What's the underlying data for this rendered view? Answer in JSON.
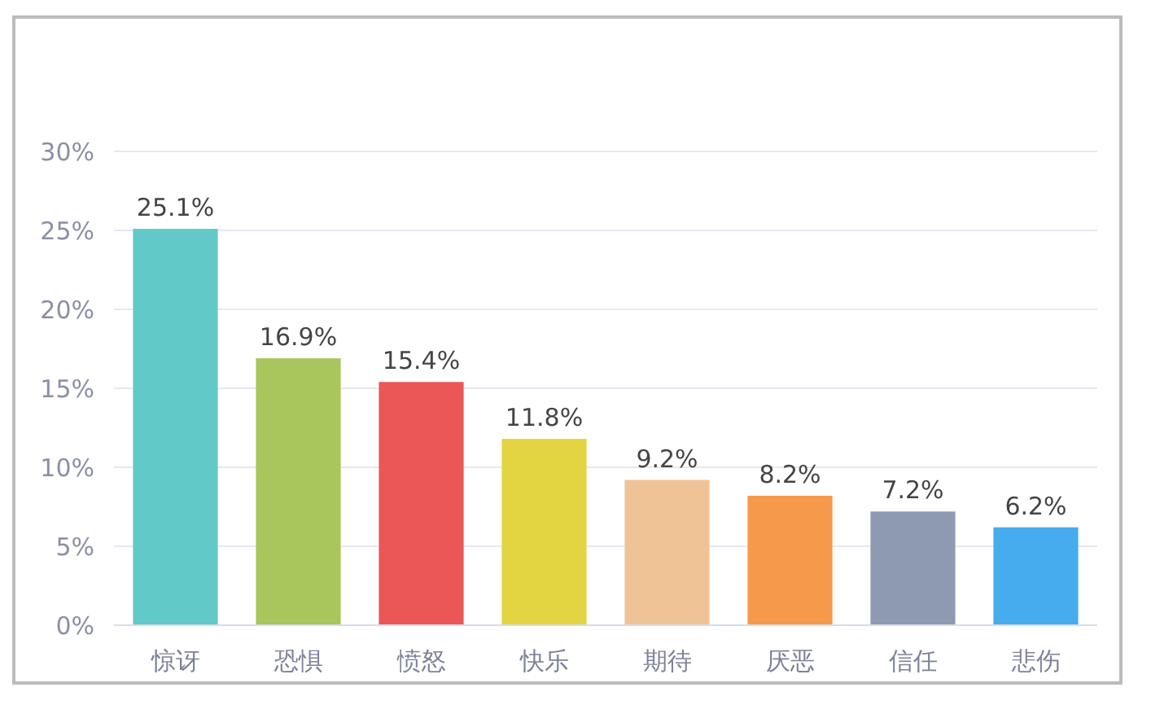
{
  "chart_data": {
    "type": "bar",
    "categories": [
      "惊讶",
      "恐惧",
      "愤怒",
      "快乐",
      "期待",
      "厌恶",
      "信任",
      "悲伤"
    ],
    "values": [
      25.1,
      16.9,
      15.4,
      11.8,
      9.2,
      8.2,
      7.2,
      6.2
    ],
    "colors": [
      "#62c9c9",
      "#a8c65c",
      "#eb5656",
      "#e3d441",
      "#f0c397",
      "#f7994b",
      "#8e9ab2",
      "#47aced"
    ],
    "value_labels": [
      "25.1%",
      "16.9%",
      "15.4%",
      "11.8%",
      "9.2%",
      "8.2%",
      "7.2%",
      "6.2%"
    ],
    "ylim": [
      0,
      30
    ],
    "yticks": [
      {
        "value": 0,
        "label": "0%"
      },
      {
        "value": 5,
        "label": "5%"
      },
      {
        "value": 10,
        "label": "10%"
      },
      {
        "value": 15,
        "label": "15%"
      },
      {
        "value": 20,
        "label": "20%"
      },
      {
        "value": 25,
        "label": "25%"
      },
      {
        "value": 30,
        "label": "30%"
      }
    ],
    "grid": "y"
  }
}
